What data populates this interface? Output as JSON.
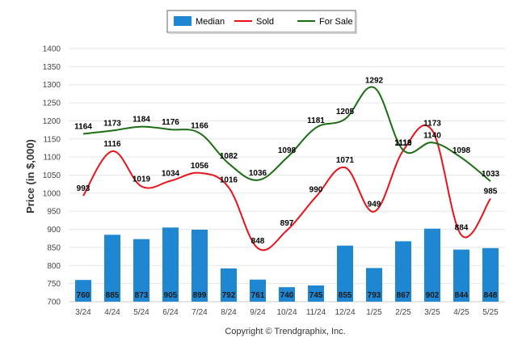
{
  "chart_data": {
    "type": "bar",
    "title": "",
    "xlabel": "",
    "ylabel": "Price (in $,000)",
    "ylim": [
      700,
      1400
    ],
    "yticks": [
      700,
      750,
      800,
      850,
      900,
      950,
      1000,
      1050,
      1100,
      1150,
      1200,
      1250,
      1300,
      1350,
      1400
    ],
    "grid": true,
    "legend_placement": "top-center",
    "categories": [
      "3/24",
      "4/24",
      "5/24",
      "6/24",
      "7/24",
      "8/24",
      "9/24",
      "10/24",
      "11/24",
      "12/24",
      "1/25",
      "2/25",
      "3/25",
      "4/25",
      "5/25"
    ],
    "series": [
      {
        "name": "Median",
        "kind": "bar",
        "color": "#1f86d1",
        "values": [
          760,
          885,
          873,
          905,
          899,
          792,
          761,
          740,
          745,
          855,
          793,
          867,
          902,
          844,
          848
        ]
      },
      {
        "name": "Sold",
        "kind": "line",
        "color": "#e8131b",
        "values": [
          993,
          1116,
          1019,
          1034,
          1056,
          1016,
          848,
          897,
          990,
          1071,
          949,
          1118,
          1173,
          884,
          985
        ]
      },
      {
        "name": "For Sale",
        "kind": "line",
        "color": "#1a6d12",
        "values": [
          1164,
          1173,
          1184,
          1176,
          1166,
          1082,
          1036,
          1098,
          1181,
          1205,
          1292,
          1119,
          1140,
          1098,
          1033
        ]
      }
    ]
  },
  "footer": {
    "copyright": "Copyright © Trendgraphix, Inc."
  }
}
